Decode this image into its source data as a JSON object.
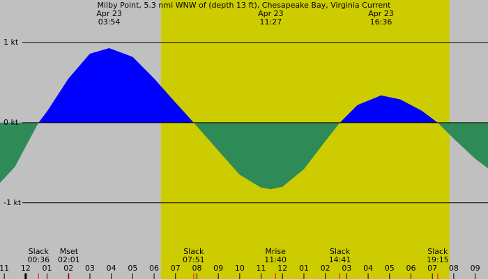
{
  "chart_data": {
    "type": "area",
    "title": "Milby Point, 5.3 nmi WNW of (depth 13 ft), Chesapeake Bay, Virginia Current",
    "x": [
      -1.2,
      -0.5,
      0,
      0.6,
      1,
      2,
      3,
      3.9,
      5,
      6,
      7,
      7.85,
      9,
      10,
      11,
      11.45,
      12,
      13,
      14,
      14.68,
      15.5,
      16.6,
      17.5,
      18.5,
      19.25,
      20,
      21,
      21.6
    ],
    "series": [
      {
        "values": [
          -0.75,
          -0.55,
          -0.3,
          0,
          0.14,
          0.55,
          0.86,
          0.93,
          0.82,
          0.55,
          0.25,
          0,
          -0.35,
          -0.65,
          -0.81,
          -0.83,
          -0.8,
          -0.58,
          -0.23,
          0,
          0.22,
          0.34,
          0.29,
          0.15,
          0,
          -0.2,
          -0.45,
          -0.57
        ],
        "color_positive": "#0000ff",
        "color_negative": "#2e8b57"
      }
    ],
    "xlim": [
      -1.2,
      21.6
    ],
    "xticks": [
      {
        "value": -1,
        "label": "11"
      },
      {
        "value": 0,
        "label": "12"
      },
      {
        "value": 1,
        "label": "01"
      },
      {
        "value": 2,
        "label": "02"
      },
      {
        "value": 3,
        "label": "03"
      },
      {
        "value": 4,
        "label": "04"
      },
      {
        "value": 5,
        "label": "05"
      },
      {
        "value": 6,
        "label": "06"
      },
      {
        "value": 7,
        "label": "07"
      },
      {
        "value": 8,
        "label": "08"
      },
      {
        "value": 9,
        "label": "09"
      },
      {
        "value": 10,
        "label": "10"
      },
      {
        "value": 11,
        "label": "11"
      },
      {
        "value": 12,
        "label": "12"
      },
      {
        "value": 13,
        "label": "01"
      },
      {
        "value": 14,
        "label": "02"
      },
      {
        "value": 15,
        "label": "03"
      },
      {
        "value": 16,
        "label": "04"
      },
      {
        "value": 17,
        "label": "05"
      },
      {
        "value": 18,
        "label": "06"
      },
      {
        "value": 19,
        "label": "07"
      },
      {
        "value": 20,
        "label": "08"
      },
      {
        "value": 21,
        "label": "09"
      }
    ],
    "ylim": [
      -1.95,
      1.53
    ],
    "yticks": [
      {
        "value": 1,
        "label": "1 kt"
      },
      {
        "value": 0,
        "label": "0 kt"
      },
      {
        "value": -1,
        "label": "-1 kt"
      }
    ],
    "grid": true,
    "daylight": [
      6.32,
      19.8
    ],
    "background": "#c0c0c0",
    "daylight_color": "#cccc00",
    "peaks": [
      {
        "date": "Apr 23",
        "time": "03:54",
        "x": 3.9
      },
      {
        "date": "Apr 23",
        "time": "11:27",
        "x": 11.45
      },
      {
        "date": "Apr 23",
        "time": "16:36",
        "x": 16.6
      }
    ],
    "events": [
      {
        "label": "Slack",
        "time": "00:36",
        "x": 0.6
      },
      {
        "label": "Mset",
        "time": "02:01",
        "x": 2.02
      },
      {
        "label": "Slack",
        "time": "07:51",
        "x": 7.85
      },
      {
        "label": "Mrise",
        "time": "11:40",
        "x": 11.67
      },
      {
        "label": "Slack",
        "time": "14:41",
        "x": 14.68
      },
      {
        "label": "Slack",
        "time": "19:15",
        "x": 19.25
      }
    ]
  }
}
